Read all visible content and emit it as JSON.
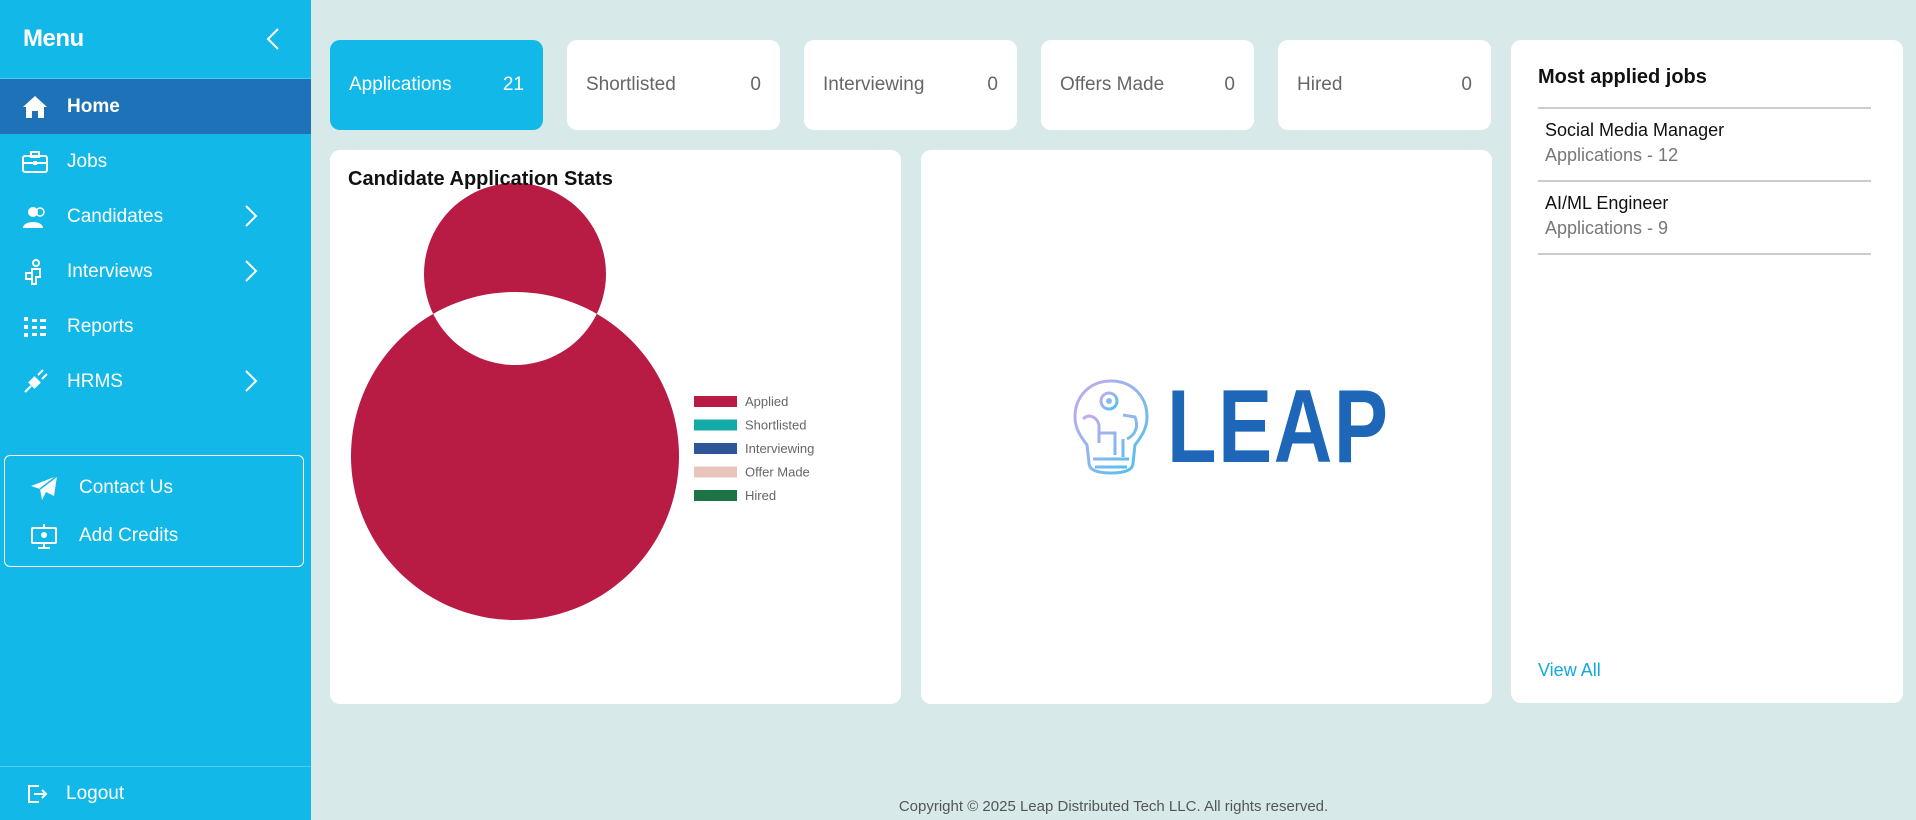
{
  "sidebar": {
    "title": "Menu",
    "items": [
      {
        "label": "Home",
        "icon": "home-icon",
        "active": true
      },
      {
        "label": "Jobs",
        "icon": "briefcase-icon"
      },
      {
        "label": "Candidates",
        "icon": "users-icon",
        "has_children": true
      },
      {
        "label": "Interviews",
        "icon": "interview-icon",
        "has_children": true
      },
      {
        "label": "Reports",
        "icon": "reports-icon"
      },
      {
        "label": "HRMS",
        "icon": "plug-icon",
        "has_children": true
      }
    ],
    "secondary": [
      {
        "label": "Contact Us",
        "icon": "paper-plane-icon"
      },
      {
        "label": "Add Credits",
        "icon": "credits-icon"
      }
    ],
    "logout": "Logout"
  },
  "stats": [
    {
      "label": "Applications",
      "count": "21",
      "active": true
    },
    {
      "label": "Shortlisted",
      "count": "0"
    },
    {
      "label": "Interviewing",
      "count": "0"
    },
    {
      "label": "Offers Made",
      "count": "0"
    },
    {
      "label": "Hired",
      "count": "0"
    }
  ],
  "chart": {
    "title": "Candidate Application Stats"
  },
  "chart_data": {
    "type": "pie",
    "donut": true,
    "labels": [
      "Applied",
      "Shortlisted",
      "Interviewing",
      "Offer Made",
      "Hired"
    ],
    "values": [
      21,
      0,
      0,
      0,
      0
    ],
    "colors": [
      "#b81b44",
      "#14aaa8",
      "#2d5598",
      "#e8c4bd",
      "#1b7346"
    ],
    "legend_position": "right"
  },
  "logo": {
    "text": "LEAP"
  },
  "jobs": {
    "title": "Most applied jobs",
    "items": [
      {
        "name": "Social Media Manager",
        "apps": "Applications - 12"
      },
      {
        "name": "AI/ML Engineer",
        "apps": "Applications - 9"
      }
    ],
    "view_all": "View All"
  },
  "footer": "Copyright © 2025 Leap Distributed Tech LLC. All rights reserved.",
  "colors": {
    "sidebar": "#12b8e8",
    "active_nav": "#1e73b8",
    "background": "#d8e9e9",
    "brand": "#1e66b8"
  }
}
